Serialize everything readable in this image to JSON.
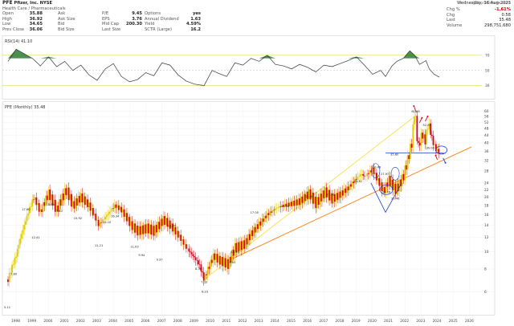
{
  "header": {
    "symbol": "PFE",
    "company": "Pfizer, Inc.",
    "exchange": "NYSE",
    "sector": "Health Care / Pharmaceuticals",
    "date": "Wednesday, 16-Aug-2023",
    "quote_labels": {
      "open": "Open",
      "high": "High",
      "low": "Low",
      "prev_close": "Prev Close",
      "ask": "Ask",
      "ask_size": "Ask Size",
      "bid": "Bid",
      "bid_size": "Bid Size",
      "pe": "P/E",
      "eps": "EPS",
      "mid_cap": "Mid Cap",
      "last_size": "Last Size",
      "options": "Options",
      "annual_dividend": "Annual Dividend",
      "yield": "Yield",
      "sctr": "SCTR (Large)",
      "change_pct": "Chg %",
      "chg": "Chg",
      "last": "Last",
      "volume": "Volume"
    },
    "quote": {
      "open": "35.88",
      "high": "36.92",
      "low": "34.65",
      "prev_close": "36.06",
      "ask": "",
      "ask_size": "",
      "bid": "",
      "bid_size": "",
      "pe": "9.45",
      "eps": "3.76",
      "mid_cap": "200.30",
      "last_size": "",
      "options": "yes",
      "annual_dividend": "1.63",
      "yield": "4.59%",
      "sctr": "16.2",
      "change_pct": "-1.61%",
      "chg": "0.58",
      "last": "35.48",
      "volume": "298,751,680"
    },
    "watermark": "@StockCharts.com"
  },
  "colors": {
    "up_candle": "#e0ca00",
    "down_candle": "#d0021b",
    "upper_trend": "#f5e04a",
    "lower_trend": "#ff7f10",
    "annotation_blue": "#1f3fbf",
    "annotation_red": "#d0021b",
    "rsi_line": "#333333",
    "rsi_fill": "#2e7d32"
  },
  "rsi": {
    "label": "RSI(14) 41.10",
    "levels": [
      70,
      50,
      30
    ],
    "axis_ticks": [
      "70",
      "50",
      "30"
    ]
  },
  "main_label": "PFE (Monthly) 35.48",
  "chart_data": {
    "type": "candlestick",
    "title": "PFE (Monthly) 35.48",
    "ylim": [
      5,
      64
    ],
    "y_ticks": [
      6,
      8,
      10,
      12,
      14,
      16,
      18,
      20,
      22,
      24,
      28,
      32,
      36,
      40,
      44,
      48,
      52,
      56,
      60
    ],
    "x_ticks": [
      "1998",
      "1999",
      "2000",
      "2001",
      "2002",
      "2003",
      "2004",
      "2005",
      "2006",
      "2007",
      "2008",
      "2009",
      "2010",
      "2011",
      "2012",
      "2013",
      "2014",
      "2015",
      "2016",
      "2017",
      "2018",
      "2019",
      "2020",
      "2021",
      "2022",
      "2023",
      "2024",
      "2025",
      "2026"
    ],
    "price_path": [
      {
        "year": 1997.0,
        "price": 7.0
      },
      {
        "year": 1997.5,
        "price": 9.5
      },
      {
        "year": 1998.0,
        "price": 14.0
      },
      {
        "year": 1998.6,
        "price": 20.0
      },
      {
        "year": 1999.0,
        "price": 16.5
      },
      {
        "year": 1999.5,
        "price": 21.0
      },
      {
        "year": 2000.0,
        "price": 17.0
      },
      {
        "year": 2000.6,
        "price": 22.0
      },
      {
        "year": 2001.0,
        "price": 18.0
      },
      {
        "year": 2001.5,
        "price": 20.0
      },
      {
        "year": 2002.0,
        "price": 18.0
      },
      {
        "year": 2002.6,
        "price": 14.0
      },
      {
        "year": 2003.0,
        "price": 15.5
      },
      {
        "year": 2003.6,
        "price": 18.0
      },
      {
        "year": 2004.0,
        "price": 17.0
      },
      {
        "year": 2004.6,
        "price": 14.0
      },
      {
        "year": 2005.0,
        "price": 13.0
      },
      {
        "year": 2005.6,
        "price": 13.5
      },
      {
        "year": 2006.0,
        "price": 13.0
      },
      {
        "year": 2006.6,
        "price": 15.0
      },
      {
        "year": 2007.0,
        "price": 14.0
      },
      {
        "year": 2007.6,
        "price": 12.0
      },
      {
        "year": 2008.0,
        "price": 10.5
      },
      {
        "year": 2008.8,
        "price": 8.5
      },
      {
        "year": 2009.1,
        "price": 7.0
      },
      {
        "year": 2009.7,
        "price": 9.5
      },
      {
        "year": 2010.0,
        "price": 9.0
      },
      {
        "year": 2010.6,
        "price": 8.5
      },
      {
        "year": 2011.0,
        "price": 10.5
      },
      {
        "year": 2011.6,
        "price": 11.0
      },
      {
        "year": 2012.0,
        "price": 12.5
      },
      {
        "year": 2012.6,
        "price": 14.5
      },
      {
        "year": 2013.0,
        "price": 16.0
      },
      {
        "year": 2013.6,
        "price": 17.5
      },
      {
        "year": 2014.0,
        "price": 18.0
      },
      {
        "year": 2014.6,
        "price": 18.5
      },
      {
        "year": 2015.0,
        "price": 19.0
      },
      {
        "year": 2015.6,
        "price": 21.0
      },
      {
        "year": 2016.0,
        "price": 18.5
      },
      {
        "year": 2016.6,
        "price": 21.5
      },
      {
        "year": 2017.0,
        "price": 19.5
      },
      {
        "year": 2017.6,
        "price": 21.0
      },
      {
        "year": 2018.0,
        "price": 22.5
      },
      {
        "year": 2018.8,
        "price": 27.0
      },
      {
        "year": 2019.0,
        "price": 26.0
      },
      {
        "year": 2019.5,
        "price": 28.5
      },
      {
        "year": 2019.8,
        "price": 25.0
      },
      {
        "year": 2020.2,
        "price": 21.5
      },
      {
        "year": 2020.5,
        "price": 25.0
      },
      {
        "year": 2020.9,
        "price": 22.0
      },
      {
        "year": 2021.1,
        "price": 23.0
      },
      {
        "year": 2021.4,
        "price": 26.0
      },
      {
        "year": 2021.7,
        "price": 33.0
      },
      {
        "year": 2021.95,
        "price": 41.0
      },
      {
        "year": 2022.1,
        "price": 61.7
      },
      {
        "year": 2022.3,
        "price": 37.0
      },
      {
        "year": 2022.55,
        "price": 45.0
      },
      {
        "year": 2022.75,
        "price": 41.0
      },
      {
        "year": 2022.95,
        "price": 51.5
      },
      {
        "year": 2023.2,
        "price": 41.0
      },
      {
        "year": 2023.4,
        "price": 37.0
      },
      {
        "year": 2023.62,
        "price": 35.48
      }
    ],
    "price_labels": [
      {
        "year": 1997.0,
        "price": 5.11,
        "text": "5.11"
      },
      {
        "year": 1997.4,
        "price": 7.8,
        "text": "7.80"
      },
      {
        "year": 1998.1,
        "price": 17.8,
        "text": "17.80"
      },
      {
        "year": 1998.7,
        "price": 12.41,
        "text": "12.41"
      },
      {
        "year": 1999.6,
        "price": 18.95,
        "text": "18.95"
      },
      {
        "year": 2000.1,
        "price": 17.4,
        "text": "17.40"
      },
      {
        "year": 2001.3,
        "price": 15.92,
        "text": "15.92"
      },
      {
        "year": 2002.6,
        "price": 11.21,
        "text": "11.21"
      },
      {
        "year": 2003.1,
        "price": 15.1,
        "text": "15.10"
      },
      {
        "year": 2003.6,
        "price": 16.34,
        "text": "16.34"
      },
      {
        "year": 2004.8,
        "price": 11.03,
        "text": "11.03"
      },
      {
        "year": 2005.3,
        "price": 9.94,
        "text": "9.94"
      },
      {
        "year": 2006.4,
        "price": 9.37,
        "text": "9.37"
      },
      {
        "year": 2007.1,
        "price": 14.44,
        "text": "14.44"
      },
      {
        "year": 2008.8,
        "price": 8.36,
        "text": "8.36"
      },
      {
        "year": 2009.15,
        "price": 7.03,
        "text": "7.03"
      },
      {
        "year": 2009.2,
        "price": 6.23,
        "text": "6.23"
      },
      {
        "year": 2010.9,
        "price": 9.05,
        "text": "9.05"
      },
      {
        "year": 2011.0,
        "price": 10.33,
        "text": "10.33"
      },
      {
        "year": 2012.2,
        "price": 17.05,
        "text": "17.05"
      },
      {
        "year": 2014.1,
        "price": 18.56,
        "text": "18.56"
      },
      {
        "year": 2015.6,
        "price": 21.0,
        "text": "21.00"
      },
      {
        "year": 2016.9,
        "price": 21.56,
        "text": "21.56"
      },
      {
        "year": 2018.6,
        "price": 25.42,
        "text": "25.42"
      },
      {
        "year": 2019.75,
        "price": 30.46,
        "text": "30.46"
      },
      {
        "year": 2020.25,
        "price": 27.97,
        "text": "27.97"
      },
      {
        "year": 2020.85,
        "price": 35.8,
        "text": "35.80"
      },
      {
        "year": 2020.9,
        "price": 20.46,
        "text": "20.46"
      },
      {
        "year": 2020.35,
        "price": 22.16,
        "text": "22.16"
      },
      {
        "year": 2022.15,
        "price": 61.96,
        "text": "61.96"
      },
      {
        "year": 2022.85,
        "price": 52.25,
        "text": "52.25"
      },
      {
        "year": 2023.05,
        "price": 39.04,
        "text": "39.04"
      }
    ],
    "trendlines": [
      {
        "name": "upper",
        "from": {
          "year": 2009.1,
          "price": 7.0
        },
        "to": {
          "year": 2022.1,
          "price": 56.0
        }
      },
      {
        "name": "lower",
        "from": {
          "year": 2010.7,
          "price": 9.0
        },
        "to": {
          "year": 2025.6,
          "price": 38.0
        }
      }
    ],
    "support_line": {
      "from_year": 2020.3,
      "to_year": 2023.9,
      "price": 35.2
    },
    "rsi_values": [
      {
        "year": 1997.0,
        "v": 62
      },
      {
        "year": 1997.5,
        "v": 78
      },
      {
        "year": 1998.0,
        "v": 72
      },
      {
        "year": 1998.5,
        "v": 66
      },
      {
        "year": 1999.0,
        "v": 56
      },
      {
        "year": 1999.5,
        "v": 68
      },
      {
        "year": 2000.0,
        "v": 55
      },
      {
        "year": 2000.5,
        "v": 62
      },
      {
        "year": 2001.0,
        "v": 50
      },
      {
        "year": 2001.5,
        "v": 57
      },
      {
        "year": 2002.0,
        "v": 44
      },
      {
        "year": 2002.5,
        "v": 37
      },
      {
        "year": 2003.0,
        "v": 52
      },
      {
        "year": 2003.5,
        "v": 59
      },
      {
        "year": 2004.0,
        "v": 42
      },
      {
        "year": 2004.5,
        "v": 35
      },
      {
        "year": 2005.0,
        "v": 38
      },
      {
        "year": 2005.5,
        "v": 47
      },
      {
        "year": 2006.0,
        "v": 43
      },
      {
        "year": 2006.5,
        "v": 60
      },
      {
        "year": 2007.0,
        "v": 57
      },
      {
        "year": 2007.5,
        "v": 44
      },
      {
        "year": 2008.0,
        "v": 36
      },
      {
        "year": 2008.5,
        "v": 32
      },
      {
        "year": 2009.1,
        "v": 30
      },
      {
        "year": 2009.6,
        "v": 50
      },
      {
        "year": 2010.0,
        "v": 46
      },
      {
        "year": 2010.5,
        "v": 42
      },
      {
        "year": 2011.0,
        "v": 60
      },
      {
        "year": 2011.5,
        "v": 57
      },
      {
        "year": 2012.0,
        "v": 66
      },
      {
        "year": 2012.5,
        "v": 62
      },
      {
        "year": 2013.0,
        "v": 70
      },
      {
        "year": 2013.5,
        "v": 58
      },
      {
        "year": 2014.0,
        "v": 56
      },
      {
        "year": 2014.5,
        "v": 52
      },
      {
        "year": 2015.0,
        "v": 58
      },
      {
        "year": 2015.5,
        "v": 54
      },
      {
        "year": 2016.0,
        "v": 48
      },
      {
        "year": 2016.5,
        "v": 57
      },
      {
        "year": 2017.0,
        "v": 55
      },
      {
        "year": 2017.5,
        "v": 59
      },
      {
        "year": 2018.0,
        "v": 63
      },
      {
        "year": 2018.5,
        "v": 68
      },
      {
        "year": 2019.0,
        "v": 57
      },
      {
        "year": 2019.5,
        "v": 45
      },
      {
        "year": 2020.0,
        "v": 50
      },
      {
        "year": 2020.3,
        "v": 42
      },
      {
        "year": 2020.7,
        "v": 56
      },
      {
        "year": 2021.0,
        "v": 62
      },
      {
        "year": 2021.4,
        "v": 66
      },
      {
        "year": 2021.8,
        "v": 76
      },
      {
        "year": 2022.1,
        "v": 70
      },
      {
        "year": 2022.4,
        "v": 58
      },
      {
        "year": 2022.8,
        "v": 63
      },
      {
        "year": 2023.0,
        "v": 52
      },
      {
        "year": 2023.3,
        "v": 45
      },
      {
        "year": 2023.62,
        "v": 41.1
      }
    ]
  }
}
